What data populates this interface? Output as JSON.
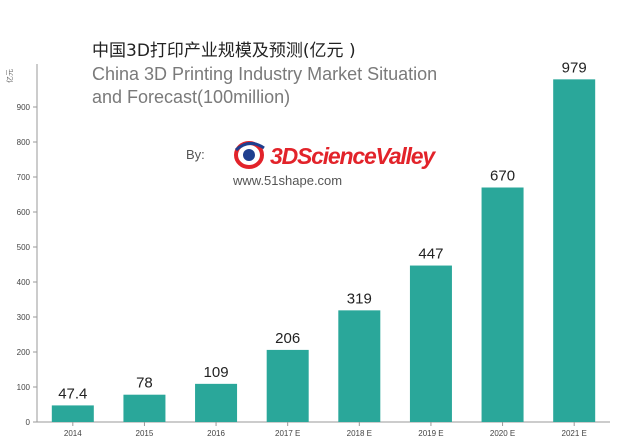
{
  "chart_data": {
    "type": "bar",
    "title": "中国3D打印产业规模及预测(亿元 )",
    "subtitle": "China 3D Printing Industry Market Situation and Forecast(100million)",
    "subtitle_lines": [
      "China 3D Printing Industry Market Situation",
      "and Forecast(100million)"
    ],
    "ylabel": "亿元",
    "xlabel": "",
    "categories": [
      "2014",
      "2015",
      "2016",
      "2017 E",
      "2018 E",
      "2019 E",
      "2020 E",
      "2021 E"
    ],
    "values": [
      47.4,
      78,
      109,
      206,
      319,
      447,
      670,
      979
    ],
    "value_labels": [
      "47.4",
      "78",
      "109",
      "206",
      "319",
      "447",
      "670",
      "979"
    ],
    "ylim": [
      0,
      1000
    ],
    "yticks": [
      0,
      100,
      200,
      300,
      400,
      500,
      600,
      700,
      800,
      900
    ],
    "grid": false,
    "legend": "none",
    "bar_color": "#2aa79a"
  },
  "branding": {
    "by_label": "By:",
    "logo_text": "3DScienceValley",
    "website": "www.51shape.com",
    "logo_colors": {
      "red": "#e2232a",
      "blue": "#1f3f8f"
    }
  },
  "colors": {
    "axis": "#9a9a9a",
    "text": "#222222"
  }
}
